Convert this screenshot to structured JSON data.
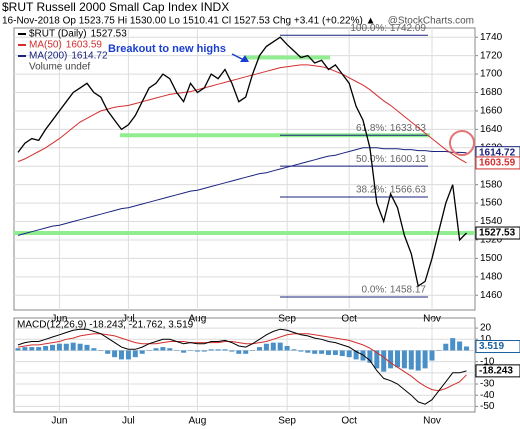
{
  "header": {
    "symbol_line": "$RUT Russell 2000 Small Cap Index INDX",
    "quote_line": "16-Nov-2018    Op 1523.75  Hi 1530.00  Lo 1510.41  Cl 1527.53  Chg +3.41 (+0.22%) ▲",
    "credit": "@StockCharts.com"
  },
  "chart_data": [
    {
      "type": "line",
      "legend_title": "$RUT (Daily)",
      "volume_label": "Volume undef",
      "categories": [
        null,
        null,
        null,
        null,
        null,
        null,
        "Jun",
        null,
        null,
        null,
        null,
        null,
        null,
        null,
        null,
        null,
        "Jul",
        null,
        null,
        null,
        null,
        null,
        null,
        null,
        null,
        null,
        "Aug",
        null,
        null,
        null,
        null,
        null,
        null,
        null,
        null,
        null,
        null,
        null,
        null,
        "Sep",
        null,
        null,
        null,
        null,
        null,
        null,
        null,
        null,
        "Oct",
        null,
        null,
        null,
        null,
        null,
        null,
        null,
        null,
        null,
        null,
        null,
        "Nov",
        null,
        null,
        null,
        null,
        null
      ],
      "series": [
        {
          "name": "$RUT (Daily)",
          "color": "#000000",
          "values": [
            1615,
            1625,
            1630,
            1628,
            1640,
            1650,
            1660,
            1670,
            1680,
            1685,
            1690,
            1680,
            1675,
            1660,
            1650,
            1640,
            1645,
            1655,
            1670,
            1685,
            1690,
            1700,
            1695,
            1680,
            1670,
            1690,
            1680,
            1685,
            1700,
            1695,
            1705,
            1690,
            1670,
            1675,
            1700,
            1720,
            1730,
            1735,
            1740,
            1732,
            1725,
            1718,
            1720,
            1712,
            1715,
            1705,
            1710,
            1700,
            1690,
            1665,
            1650,
            1620,
            1560,
            1540,
            1570,
            1555,
            1525,
            1505,
            1470,
            1475,
            1500,
            1530,
            1560,
            1580,
            1520,
            1527.53
          ]
        },
        {
          "name": "MA(50)",
          "color": "#d32f2f",
          "values": [
            1605,
            1608,
            1612,
            1616,
            1620,
            1625,
            1630,
            1636,
            1642,
            1648,
            1652,
            1656,
            1660,
            1662,
            1664,
            1665,
            1666,
            1668,
            1670,
            1672,
            1674,
            1676,
            1678,
            1679,
            1680,
            1681,
            1683,
            1685,
            1687,
            1689,
            1691,
            1693,
            1695,
            1697,
            1699,
            1701,
            1703,
            1705,
            1707,
            1708,
            1709,
            1710,
            1710,
            1709,
            1708,
            1706,
            1703,
            1700,
            1696,
            1692,
            1688,
            1683,
            1677,
            1671,
            1666,
            1660,
            1654,
            1648,
            1642,
            1636,
            1630,
            1624,
            1618,
            1613,
            1608,
            1603.59
          ]
        },
        {
          "name": "MA(200)",
          "color": "#1a237e",
          "values": [
            1525,
            1527,
            1529,
            1531,
            1533,
            1535,
            1536,
            1538,
            1540,
            1542,
            1544,
            1546,
            1548,
            1550,
            1552,
            1554,
            1555,
            1557,
            1559,
            1561,
            1563,
            1565,
            1567,
            1569,
            1571,
            1573,
            1574,
            1576,
            1578,
            1580,
            1582,
            1584,
            1586,
            1588,
            1590,
            1592,
            1593,
            1595,
            1597,
            1599,
            1601,
            1603,
            1605,
            1607,
            1609,
            1611,
            1612,
            1614,
            1616,
            1618,
            1620,
            1620,
            1620,
            1619,
            1619,
            1619,
            1618,
            1618,
            1617,
            1617,
            1616,
            1616,
            1616,
            1615,
            1615,
            1614.72
          ]
        }
      ],
      "ylim": [
        1444,
        1750
      ],
      "yticks": [
        1460,
        1480,
        1500,
        1520,
        1540,
        1560,
        1580,
        1600,
        1620,
        1640,
        1660,
        1680,
        1700,
        1720,
        1740
      ],
      "grid": true,
      "fib_levels": [
        {
          "label": "100.0%: 1742.09",
          "value": 1742.09
        },
        {
          "label": "61.8%: 1633.63",
          "value": 1633.63
        },
        {
          "label": "50.0%: 1600.13",
          "value": 1600.13
        },
        {
          "label": "38.2%: 1566.63",
          "value": 1566.63
        },
        {
          "label": "0.0%: 1458.17",
          "value": 1458.17
        }
      ],
      "highlight_levels": [
        1718,
        1633.63,
        1527.53
      ],
      "highlight_color": "#90ee90",
      "annotation": "Breakout to new highs"
    },
    {
      "type": "line",
      "title": "MACD(12,26,9) -18.243, -21.762, 3.519",
      "series": [
        {
          "name": "MACD",
          "color": "#000000",
          "values": [
            5,
            7,
            8,
            8,
            10,
            12,
            14,
            16,
            18,
            19,
            19,
            17,
            15,
            11,
            7,
            3,
            1,
            1,
            3,
            6,
            8,
            10,
            10,
            8,
            6,
            7,
            6,
            6,
            8,
            8,
            9,
            7,
            4,
            3,
            6,
            10,
            14,
            17,
            19,
            18,
            16,
            14,
            13,
            11,
            10,
            8,
            7,
            5,
            3,
            -1,
            -4,
            -9,
            -18,
            -25,
            -27,
            -30,
            -35,
            -40,
            -46,
            -48,
            -44,
            -36,
            -28,
            -20,
            -20,
            -18.243
          ]
        },
        {
          "name": "Signal",
          "color": "#d32f2f",
          "values": [
            3,
            4,
            5,
            5,
            6,
            7,
            8,
            10,
            11,
            13,
            14,
            15,
            15,
            14,
            13,
            11,
            9,
            7,
            6,
            6,
            6,
            7,
            8,
            8,
            8,
            7,
            7,
            7,
            7,
            7,
            8,
            8,
            7,
            6,
            6,
            7,
            8,
            10,
            12,
            14,
            15,
            15,
            15,
            14,
            13,
            12,
            11,
            10,
            9,
            7,
            5,
            2,
            -2,
            -6,
            -11,
            -15,
            -19,
            -23,
            -28,
            -32,
            -35,
            -36,
            -34,
            -31,
            -28,
            -21.762
          ]
        },
        {
          "name": "Histogram",
          "type": "bar",
          "color": "#4a90c8",
          "values": [
            2,
            3,
            3,
            3,
            4,
            5,
            6,
            6,
            7,
            6,
            5,
            2,
            0,
            -3,
            -6,
            -8,
            -8,
            -6,
            -3,
            0,
            2,
            3,
            2,
            0,
            -2,
            0,
            -1,
            -1,
            1,
            1,
            1,
            -1,
            -3,
            -3,
            0,
            3,
            6,
            7,
            7,
            4,
            1,
            -1,
            -2,
            -3,
            -3,
            -4,
            -4,
            -5,
            -6,
            -8,
            -9,
            -11,
            -16,
            -19,
            -16,
            -15,
            -16,
            -17,
            -18,
            -16,
            -9,
            0,
            6,
            11,
            8,
            3.519
          ]
        }
      ],
      "ylim": [
        -55,
        29
      ],
      "yticks": [
        20,
        10,
        0,
        -10,
        -20,
        -30,
        -40,
        -50
      ],
      "grid": true
    }
  ]
}
